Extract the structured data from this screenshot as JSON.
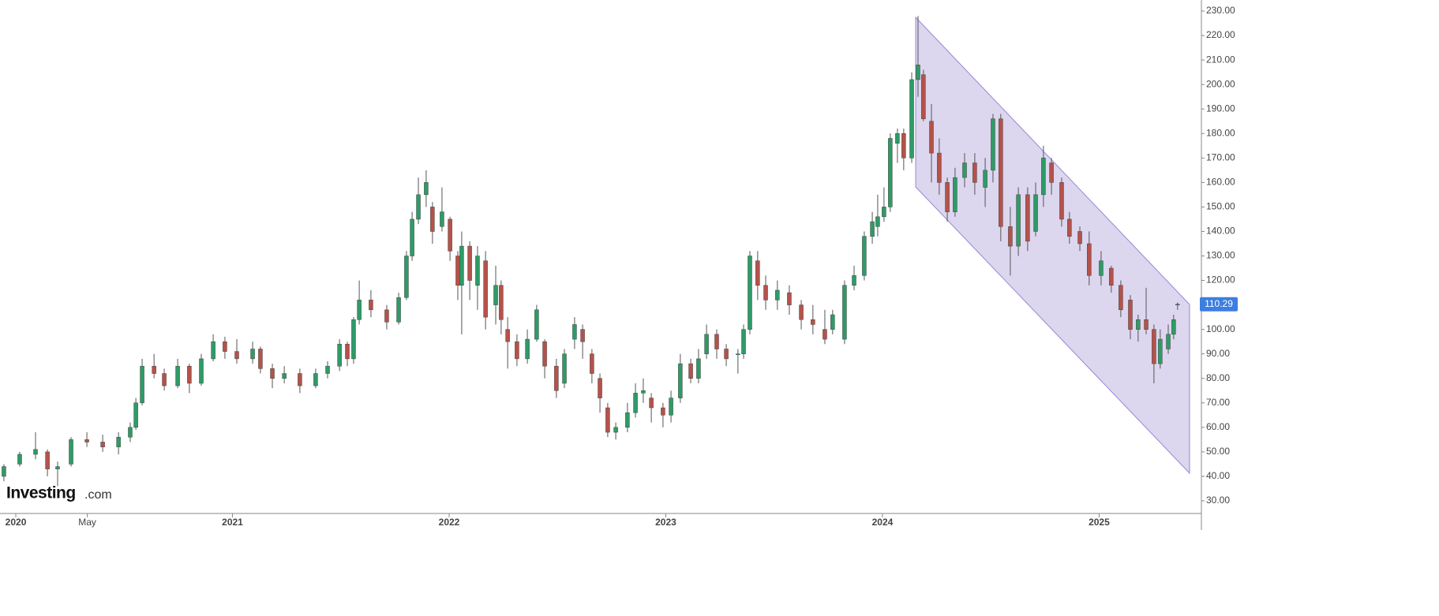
{
  "chart_data": {
    "type": "candlestick",
    "up_color": "#2e9b67",
    "down_color": "#b5524a",
    "grid": false,
    "watermark": {
      "brand": "Investing",
      "suffix": ".com"
    },
    "last_price": 110.29,
    "xlim": [
      2019.927,
      2025.472
    ],
    "xticks": [
      {
        "value": 2020,
        "label": "2020"
      },
      {
        "value": 2020.33,
        "label": "May"
      },
      {
        "value": 2021,
        "label": "2021"
      },
      {
        "value": 2022,
        "label": "2022"
      },
      {
        "value": 2023,
        "label": "2023"
      },
      {
        "value": 2024,
        "label": "2024"
      },
      {
        "value": 2025,
        "label": "2025"
      }
    ],
    "ylim": [
      30,
      230
    ],
    "yticks": [
      {
        "value": 230,
        "label": "230.00"
      },
      {
        "value": 220,
        "label": "220.00"
      },
      {
        "value": 210,
        "label": "210.00"
      },
      {
        "value": 200,
        "label": "200.00"
      },
      {
        "value": 190,
        "label": "190.00"
      },
      {
        "value": 180,
        "label": "180.00"
      },
      {
        "value": 170,
        "label": "170.00"
      },
      {
        "value": 160,
        "label": "160.00"
      },
      {
        "value": 150,
        "label": "150.00"
      },
      {
        "value": 140,
        "label": "140.00"
      },
      {
        "value": 130,
        "label": "130.00"
      },
      {
        "value": 120,
        "label": "120.00"
      },
      {
        "value": 110,
        "label": "110.00"
      },
      {
        "value": 100,
        "label": "100.00"
      },
      {
        "value": 90,
        "label": "90.00"
      },
      {
        "value": 80,
        "label": "80.00"
      },
      {
        "value": 70,
        "label": "70.00"
      },
      {
        "value": 60,
        "label": "60.00"
      },
      {
        "value": 50,
        "label": "50.00"
      },
      {
        "value": 40,
        "label": "40.00"
      },
      {
        "value": 30,
        "label": "30.00"
      }
    ],
    "x": [
      2019.945,
      2020.018,
      2020.091,
      2020.146,
      2020.193,
      2020.255,
      2020.328,
      2020.401,
      2020.474,
      2020.528,
      2020.554,
      2020.583,
      2020.638,
      2020.685,
      2020.747,
      2020.801,
      2020.856,
      2020.911,
      2020.965,
      2021.02,
      2021.093,
      2021.129,
      2021.184,
      2021.239,
      2021.311,
      2021.384,
      2021.439,
      2021.494,
      2021.53,
      2021.559,
      2021.585,
      2021.639,
      2021.712,
      2021.767,
      2021.803,
      2021.829,
      2021.858,
      2021.894,
      2021.923,
      2021.967,
      2022.004,
      2022.04,
      2022.058,
      2022.095,
      2022.131,
      2022.168,
      2022.215,
      2022.24,
      2022.27,
      2022.313,
      2022.361,
      2022.404,
      2022.441,
      2022.495,
      2022.532,
      2022.579,
      2022.616,
      2022.659,
      2022.696,
      2022.732,
      2022.769,
      2022.823,
      2022.86,
      2022.896,
      2022.933,
      2022.987,
      2023.024,
      2023.067,
      2023.115,
      2023.151,
      2023.188,
      2023.235,
      2023.279,
      2023.333,
      2023.359,
      2023.388,
      2023.424,
      2023.461,
      2023.515,
      2023.57,
      2023.625,
      2023.679,
      2023.734,
      2023.77,
      2023.825,
      2023.869,
      2023.916,
      2023.953,
      2023.978,
      2024.007,
      2024.036,
      2024.069,
      2024.098,
      2024.135,
      2024.164,
      2024.189,
      2024.226,
      2024.262,
      2024.299,
      2024.335,
      2024.379,
      2024.426,
      2024.474,
      2024.51,
      2024.546,
      2024.59,
      2024.627,
      2024.67,
      2024.707,
      2024.743,
      2024.78,
      2024.827,
      2024.863,
      2024.911,
      2024.954,
      2025.009,
      2025.056,
      2025.1,
      2025.144,
      2025.18,
      2025.217,
      2025.253,
      2025.282,
      2025.319,
      2025.344,
      2025.362
    ],
    "open": [
      40,
      45,
      49,
      50,
      43,
      45,
      55,
      54,
      52,
      56,
      60,
      70,
      85,
      82,
      77,
      85,
      78,
      88,
      95,
      91,
      88,
      92,
      84,
      80,
      82,
      77,
      82,
      85,
      94,
      88,
      104,
      112,
      108,
      103,
      113,
      130,
      145,
      155,
      150,
      142,
      145,
      130,
      118,
      134,
      118,
      128,
      110,
      118,
      100,
      95,
      88,
      96,
      95,
      85,
      78,
      96,
      100,
      90,
      80,
      68,
      58,
      60,
      66,
      74,
      72,
      68,
      65,
      72,
      86,
      80,
      90,
      98,
      92,
      90,
      90,
      100,
      128,
      118,
      112,
      115,
      110,
      104,
      100,
      100,
      96,
      118,
      122,
      138,
      142,
      146,
      150,
      176,
      180,
      170,
      202,
      204,
      185,
      172,
      160,
      148,
      162,
      168,
      158,
      165,
      186,
      142,
      134,
      155,
      140,
      155,
      168,
      160,
      145,
      140,
      135,
      122,
      125,
      118,
      112,
      100,
      104,
      100,
      86,
      92,
      98,
      110
    ],
    "high": [
      45,
      50,
      58,
      51,
      46,
      56,
      58,
      57,
      58,
      62,
      72,
      88,
      90,
      84,
      88,
      86,
      90,
      98,
      97,
      96,
      95,
      93,
      86,
      85,
      84,
      84,
      87,
      96,
      95,
      105,
      120,
      116,
      110,
      115,
      132,
      148,
      162,
      165,
      152,
      158,
      146,
      132,
      140,
      136,
      134,
      132,
      126,
      120,
      105,
      98,
      100,
      110,
      96,
      88,
      92,
      105,
      102,
      92,
      82,
      70,
      62,
      70,
      78,
      80,
      74,
      70,
      75,
      90,
      88,
      92,
      102,
      100,
      94,
      92,
      102,
      132,
      132,
      122,
      120,
      118,
      112,
      110,
      108,
      108,
      120,
      126,
      140,
      148,
      155,
      158,
      180,
      182,
      182,
      205,
      228,
      206,
      192,
      178,
      162,
      166,
      172,
      172,
      170,
      188,
      188,
      150,
      158,
      158,
      160,
      175,
      170,
      162,
      148,
      142,
      140,
      132,
      126,
      120,
      114,
      106,
      117,
      102,
      100,
      102,
      106,
      111
    ],
    "low": [
      38,
      44,
      47,
      40,
      36,
      44,
      52,
      50,
      49,
      54,
      59,
      69,
      80,
      75,
      76,
      74,
      77,
      87,
      88,
      86,
      86,
      82,
      76,
      78,
      74,
      76,
      80,
      83,
      85,
      86,
      102,
      105,
      100,
      102,
      112,
      128,
      143,
      150,
      135,
      140,
      128,
      112,
      98,
      112,
      108,
      100,
      102,
      98,
      84,
      85,
      86,
      95,
      80,
      72,
      76,
      92,
      88,
      78,
      66,
      56,
      55,
      58,
      64,
      70,
      62,
      60,
      62,
      70,
      78,
      78,
      88,
      88,
      85,
      82,
      88,
      98,
      112,
      108,
      108,
      106,
      100,
      98,
      94,
      98,
      94,
      116,
      120,
      135,
      138,
      144,
      148,
      168,
      165,
      168,
      195,
      185,
      160,
      155,
      144,
      146,
      158,
      155,
      150,
      160,
      136,
      122,
      130,
      132,
      138,
      150,
      155,
      142,
      135,
      132,
      118,
      118,
      115,
      105,
      96,
      95,
      98,
      78,
      84,
      90,
      96,
      108
    ],
    "close": [
      44,
      49,
      51,
      43,
      44,
      55,
      54,
      52,
      56,
      60,
      70,
      85,
      82,
      77,
      85,
      78,
      88,
      95,
      91,
      88,
      92,
      84,
      80,
      82,
      77,
      82,
      85,
      94,
      88,
      104,
      112,
      108,
      103,
      113,
      130,
      145,
      155,
      160,
      140,
      148,
      132,
      118,
      134,
      120,
      130,
      105,
      118,
      104,
      95,
      88,
      96,
      108,
      85,
      75,
      90,
      102,
      95,
      82,
      72,
      58,
      60,
      66,
      74,
      75,
      68,
      65,
      72,
      86,
      80,
      88,
      98,
      92,
      88,
      90,
      100,
      130,
      118,
      112,
      116,
      110,
      104,
      102,
      96,
      106,
      118,
      122,
      138,
      144,
      146,
      150,
      178,
      180,
      170,
      202,
      208,
      186,
      172,
      160,
      148,
      162,
      168,
      160,
      165,
      186,
      142,
      134,
      155,
      136,
      155,
      170,
      160,
      145,
      138,
      135,
      122,
      128,
      118,
      108,
      100,
      104,
      100,
      86,
      96,
      98,
      104,
      110.29
    ]
  }
}
